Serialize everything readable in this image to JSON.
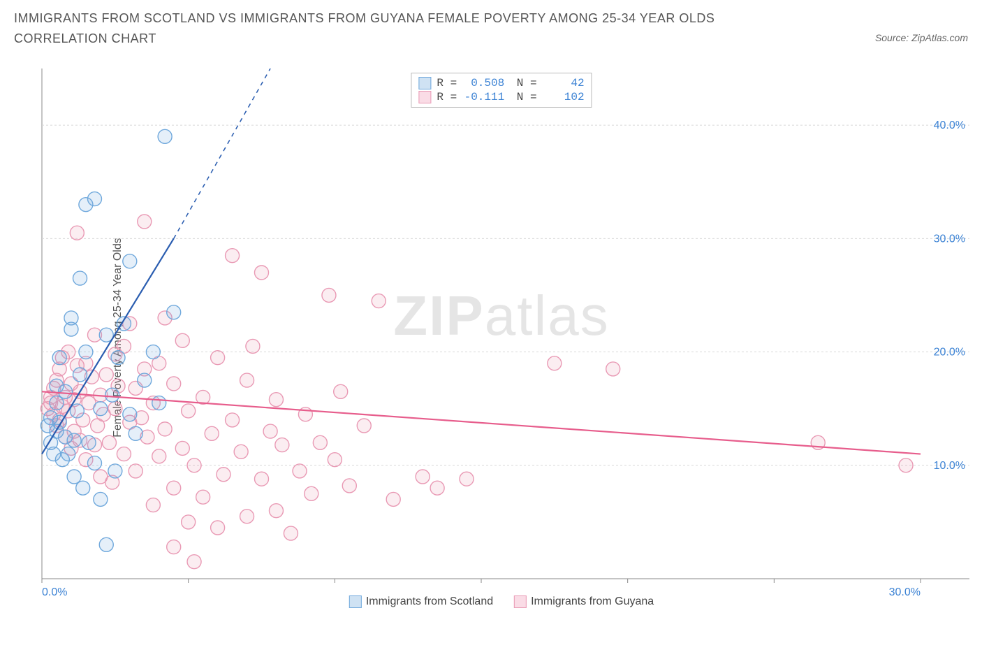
{
  "title": "IMMIGRANTS FROM SCOTLAND VS IMMIGRANTS FROM GUYANA FEMALE POVERTY AMONG 25-34 YEAR OLDS CORRELATION CHART",
  "source": "Source: ZipAtlas.com",
  "y_axis_label": "Female Poverty Among 25-34 Year Olds",
  "watermark_a": "ZIP",
  "watermark_b": "atlas",
  "chart": {
    "type": "scatter",
    "background_color": "#ffffff",
    "grid_color": "#d8d8d8",
    "axis_color": "#888888",
    "marker_radius": 10,
    "marker_fill_opacity": 0.18,
    "marker_stroke_width": 1.4,
    "line_width": 2.2,
    "xlim": [
      0,
      30
    ],
    "ylim": [
      0,
      45
    ],
    "x_ticks": [
      0,
      5,
      10,
      15,
      20,
      25,
      30
    ],
    "x_tick_labels_shown": {
      "0": "0.0%",
      "30": "30.0%"
    },
    "y_ticks": [
      10,
      20,
      30,
      40
    ],
    "y_tick_labels": {
      "10": "10.0%",
      "20": "20.0%",
      "30": "30.0%",
      "40": "40.0%"
    },
    "y_label_color": "#3b82d4",
    "x_label_color": "#3b82d4",
    "tick_fontsize": 16
  },
  "series": {
    "scotland": {
      "label": "Immigrants from Scotland",
      "color": "#6fa8dc",
      "fill": "#cfe2f3",
      "line_color": "#2a5db0",
      "R": "0.508",
      "N": "42",
      "trend": {
        "x1": 0,
        "y1": 11.0,
        "x2": 4.5,
        "y2": 30.0,
        "dash_x2": 7.8,
        "dash_y2": 45.0
      },
      "points": [
        [
          0.2,
          13.5
        ],
        [
          0.3,
          12.0
        ],
        [
          0.3,
          14.2
        ],
        [
          0.4,
          11.0
        ],
        [
          0.5,
          13.0
        ],
        [
          0.5,
          15.5
        ],
        [
          0.5,
          17.0
        ],
        [
          0.6,
          13.8
        ],
        [
          0.6,
          19.5
        ],
        [
          0.7,
          10.5
        ],
        [
          0.8,
          12.5
        ],
        [
          0.8,
          16.5
        ],
        [
          0.9,
          11.0
        ],
        [
          1.0,
          22.0
        ],
        [
          1.0,
          23.0
        ],
        [
          1.1,
          9.0
        ],
        [
          1.2,
          14.8
        ],
        [
          1.3,
          18.0
        ],
        [
          1.3,
          26.5
        ],
        [
          1.4,
          8.0
        ],
        [
          1.5,
          20.0
        ],
        [
          1.5,
          33.0
        ],
        [
          1.6,
          12.0
        ],
        [
          1.8,
          10.2
        ],
        [
          1.8,
          33.5
        ],
        [
          2.0,
          7.0
        ],
        [
          2.0,
          15.0
        ],
        [
          2.2,
          3.0
        ],
        [
          2.2,
          21.5
        ],
        [
          2.4,
          16.2
        ],
        [
          2.5,
          9.5
        ],
        [
          2.6,
          19.5
        ],
        [
          2.8,
          22.5
        ],
        [
          3.0,
          14.5
        ],
        [
          3.0,
          28.0
        ],
        [
          3.2,
          12.8
        ],
        [
          3.5,
          17.5
        ],
        [
          3.8,
          20.0
        ],
        [
          4.0,
          15.5
        ],
        [
          4.2,
          39.0
        ],
        [
          4.5,
          23.5
        ],
        [
          1.1,
          12.2
        ]
      ]
    },
    "guyana": {
      "label": "Immigrants from Guyana",
      "color": "#e999b4",
      "fill": "#fadce6",
      "line_color": "#e75d8c",
      "R": "-0.111",
      "N": "102",
      "trend": {
        "x1": 0,
        "y1": 16.5,
        "x2": 30,
        "y2": 11.0
      },
      "points": [
        [
          0.2,
          15.0
        ],
        [
          0.3,
          16.0
        ],
        [
          0.3,
          15.5
        ],
        [
          0.4,
          14.5
        ],
        [
          0.4,
          16.8
        ],
        [
          0.5,
          13.5
        ],
        [
          0.5,
          17.5
        ],
        [
          0.6,
          14.0
        ],
        [
          0.6,
          18.5
        ],
        [
          0.7,
          15.2
        ],
        [
          0.7,
          19.5
        ],
        [
          0.8,
          12.5
        ],
        [
          0.8,
          16.0
        ],
        [
          0.9,
          14.8
        ],
        [
          0.9,
          20.0
        ],
        [
          1.0,
          11.5
        ],
        [
          1.0,
          17.2
        ],
        [
          1.1,
          13.0
        ],
        [
          1.1,
          15.8
        ],
        [
          1.2,
          18.8
        ],
        [
          1.2,
          30.5
        ],
        [
          1.3,
          12.2
        ],
        [
          1.3,
          16.5
        ],
        [
          1.4,
          14.0
        ],
        [
          1.5,
          10.5
        ],
        [
          1.5,
          19.0
        ],
        [
          1.6,
          15.5
        ],
        [
          1.7,
          17.8
        ],
        [
          1.8,
          11.8
        ],
        [
          1.8,
          21.5
        ],
        [
          1.9,
          13.5
        ],
        [
          2.0,
          9.0
        ],
        [
          2.0,
          16.2
        ],
        [
          2.1,
          14.5
        ],
        [
          2.2,
          18.0
        ],
        [
          2.3,
          12.0
        ],
        [
          2.4,
          8.5
        ],
        [
          2.5,
          15.0
        ],
        [
          2.5,
          19.8
        ],
        [
          2.6,
          17.0
        ],
        [
          2.8,
          11.0
        ],
        [
          2.8,
          20.5
        ],
        [
          3.0,
          13.8
        ],
        [
          3.0,
          22.5
        ],
        [
          3.2,
          9.5
        ],
        [
          3.2,
          16.8
        ],
        [
          3.4,
          14.2
        ],
        [
          3.5,
          18.5
        ],
        [
          3.5,
          31.5
        ],
        [
          3.6,
          12.5
        ],
        [
          3.8,
          6.5
        ],
        [
          3.8,
          15.5
        ],
        [
          4.0,
          10.8
        ],
        [
          4.0,
          19.0
        ],
        [
          4.2,
          23.0
        ],
        [
          4.2,
          13.2
        ],
        [
          4.5,
          8.0
        ],
        [
          4.5,
          17.2
        ],
        [
          4.8,
          11.5
        ],
        [
          4.8,
          21.0
        ],
        [
          5.0,
          14.8
        ],
        [
          5.0,
          5.0
        ],
        [
          5.2,
          10.0
        ],
        [
          5.5,
          16.0
        ],
        [
          5.5,
          7.2
        ],
        [
          5.8,
          12.8
        ],
        [
          6.0,
          4.5
        ],
        [
          6.0,
          19.5
        ],
        [
          6.2,
          9.2
        ],
        [
          6.5,
          14.0
        ],
        [
          6.5,
          28.5
        ],
        [
          6.8,
          11.2
        ],
        [
          7.0,
          5.5
        ],
        [
          7.0,
          17.5
        ],
        [
          7.2,
          20.5
        ],
        [
          7.5,
          8.8
        ],
        [
          7.5,
          27.0
        ],
        [
          7.8,
          13.0
        ],
        [
          8.0,
          6.0
        ],
        [
          8.0,
          15.8
        ],
        [
          8.2,
          11.8
        ],
        [
          8.5,
          4.0
        ],
        [
          8.8,
          9.5
        ],
        [
          9.0,
          14.5
        ],
        [
          9.2,
          7.5
        ],
        [
          9.5,
          12.0
        ],
        [
          9.8,
          25.0
        ],
        [
          10.0,
          10.5
        ],
        [
          10.2,
          16.5
        ],
        [
          10.5,
          8.2
        ],
        [
          11.0,
          13.5
        ],
        [
          11.5,
          24.5
        ],
        [
          12.0,
          7.0
        ],
        [
          13.0,
          9.0
        ],
        [
          13.5,
          8.0
        ],
        [
          14.5,
          8.8
        ],
        [
          17.5,
          19.0
        ],
        [
          19.5,
          18.5
        ],
        [
          26.5,
          12.0
        ],
        [
          29.5,
          10.0
        ],
        [
          5.2,
          1.5
        ],
        [
          4.5,
          2.8
        ]
      ]
    }
  }
}
